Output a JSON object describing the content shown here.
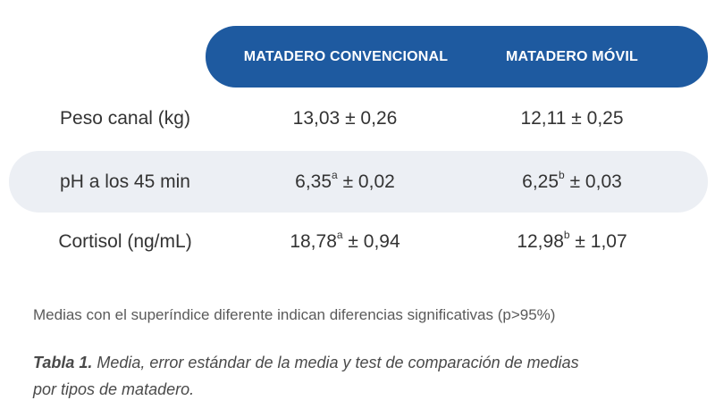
{
  "table": {
    "columns": [
      "MATADERO CONVENCIONAL",
      "MATADERO  MÓVIL"
    ],
    "rows": [
      {
        "label": "Peso canal (kg)",
        "conv": {
          "value": "13,03",
          "sup": "",
          "se": " ± 0,26"
        },
        "movil": {
          "value": "12,11",
          "sup": "",
          "se": " ± 0,25"
        }
      },
      {
        "label": "pH a los 45 min",
        "conv": {
          "value": "6,35",
          "sup": "a",
          "se": " ± 0,02"
        },
        "movil": {
          "value": "6,25",
          "sup": "b",
          "se": " ± 0,03"
        }
      },
      {
        "label": "Cortisol (ng/mL)",
        "conv": {
          "value": "18,78",
          "sup": "a",
          "se": " ± 0,94"
        },
        "movil": {
          "value": "12,98",
          "sup": "b",
          "se": " ± 1,07"
        }
      }
    ]
  },
  "footnote": "Medias con el superíndice diferente indican diferencias significativas (p>95%)",
  "caption": {
    "label": "Tabla 1.",
    "text": " Media, error estándar de la media y test de comparación de medias por tipos de matadero."
  },
  "colors": {
    "header_bg": "#1e5aa0",
    "header_text": "#ffffff",
    "band_bg": "#eceff4",
    "text": "#333333"
  }
}
